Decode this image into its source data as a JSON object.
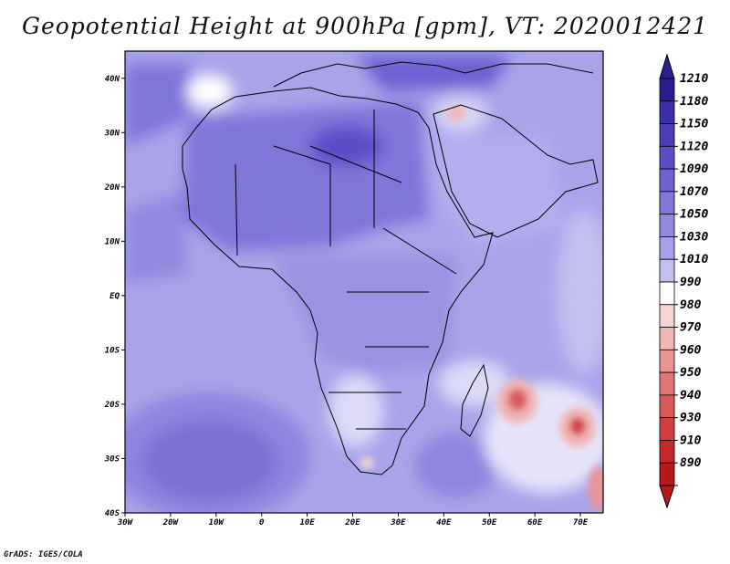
{
  "title": "Geopotential Height at 900hPa [gpm], VT: 2020012421",
  "credit": "GrADS: IGES/COLA",
  "map": {
    "lat_labels": [
      "40N",
      "30N",
      "20N",
      "10N",
      "EQ",
      "10S",
      "20S",
      "30S",
      "40S"
    ],
    "lon_labels": [
      "30W",
      "20W",
      "10W",
      "0",
      "10E",
      "20E",
      "30E",
      "40E",
      "50E",
      "60E",
      "70E"
    ],
    "lon_range": [
      -30,
      75
    ],
    "lat_range": [
      -40,
      45
    ]
  },
  "colorbar": {
    "labels": [
      "1210",
      "1180",
      "1150",
      "1120",
      "1090",
      "1070",
      "1050",
      "1030",
      "1010",
      "990",
      "980",
      "970",
      "960",
      "950",
      "940",
      "930",
      "910",
      "890"
    ],
    "colors": [
      "#2a1f8f",
      "#3a2fa6",
      "#4a3fb8",
      "#5a4ec8",
      "#6d62d2",
      "#7f76da",
      "#9189e0",
      "#a6a0e8",
      "#c3c0f1",
      "#ffffff",
      "#f7d5d5",
      "#f0b5b5",
      "#e99494",
      "#e27575",
      "#da5858",
      "#d23e3e",
      "#c82727",
      "#b81818"
    ]
  },
  "colors": {
    "ocean_mid": "#a6a0e8",
    "land_high": "#6d62d2"
  }
}
